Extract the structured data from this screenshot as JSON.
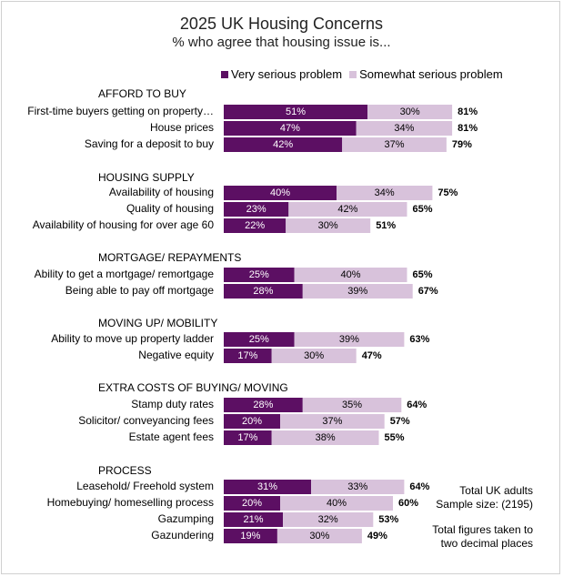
{
  "chart_data": {
    "type": "bar",
    "orientation": "horizontal",
    "stacked": true,
    "title": "2025 UK Housing Concerns",
    "subtitle": "% who agree that housing issue is...",
    "xlim": [
      0,
      100
    ],
    "grid": false,
    "legend_position": "top",
    "series": [
      {
        "name": "Very serious problem",
        "color": "#5c0f63"
      },
      {
        "name": "Somewhat serious problem",
        "color": "#d8c2db"
      }
    ],
    "groups": [
      {
        "title": "AFFORD TO BUY",
        "items": [
          {
            "label": "First-time buyers getting on property…",
            "very": 51,
            "somewhat": 30,
            "total": "81%"
          },
          {
            "label": "House prices",
            "very": 47,
            "somewhat": 34,
            "total": "81%"
          },
          {
            "label": "Saving for a deposit to buy",
            "very": 42,
            "somewhat": 37,
            "total": "79%"
          }
        ]
      },
      {
        "title": "HOUSING SUPPLY",
        "items": [
          {
            "label": "Availability of housing",
            "very": 40,
            "somewhat": 34,
            "total": "75%"
          },
          {
            "label": "Quality of housing",
            "very": 23,
            "somewhat": 42,
            "total": "65%"
          },
          {
            "label": "Availability of housing for over age 60",
            "very": 22,
            "somewhat": 30,
            "total": "51%"
          }
        ]
      },
      {
        "title": "MORTGAGE/ REPAYMENTS",
        "items": [
          {
            "label": "Ability to get a mortgage/ remortgage",
            "very": 25,
            "somewhat": 40,
            "total": "65%"
          },
          {
            "label": "Being able to pay off mortgage",
            "very": 28,
            "somewhat": 39,
            "total": "67%"
          }
        ]
      },
      {
        "title": "MOVING UP/ MOBILITY",
        "items": [
          {
            "label": "Ability to move up property ladder",
            "very": 25,
            "somewhat": 39,
            "total": "63%"
          },
          {
            "label": "Negative equity",
            "very": 17,
            "somewhat": 30,
            "total": "47%"
          }
        ]
      },
      {
        "title": "EXTRA COSTS OF BUYING/ MOVING",
        "items": [
          {
            "label": "Stamp duty rates",
            "very": 28,
            "somewhat": 35,
            "total": "64%"
          },
          {
            "label": "Solicitor/ conveyancing fees",
            "very": 20,
            "somewhat": 37,
            "total": "57%"
          },
          {
            "label": "Estate agent fees",
            "very": 17,
            "somewhat": 38,
            "total": "55%"
          }
        ]
      },
      {
        "title": "PROCESS",
        "items": [
          {
            "label": "Leasehold/ Freehold system",
            "very": 31,
            "somewhat": 33,
            "total": "64%"
          },
          {
            "label": "Homebuying/ homeselling process",
            "very": 20,
            "somewhat": 40,
            "total": "60%"
          },
          {
            "label": "Gazumping",
            "very": 21,
            "somewhat": 32,
            "total": "53%"
          },
          {
            "label": "Gazundering",
            "very": 19,
            "somewhat": 30,
            "total": "49%"
          }
        ]
      }
    ]
  },
  "notes": {
    "sample_line1": "Total UK adults",
    "sample_line2": "Sample size:  (2195)",
    "decimals_line1": "Total figures taken to",
    "decimals_line2": "two decimal places"
  }
}
